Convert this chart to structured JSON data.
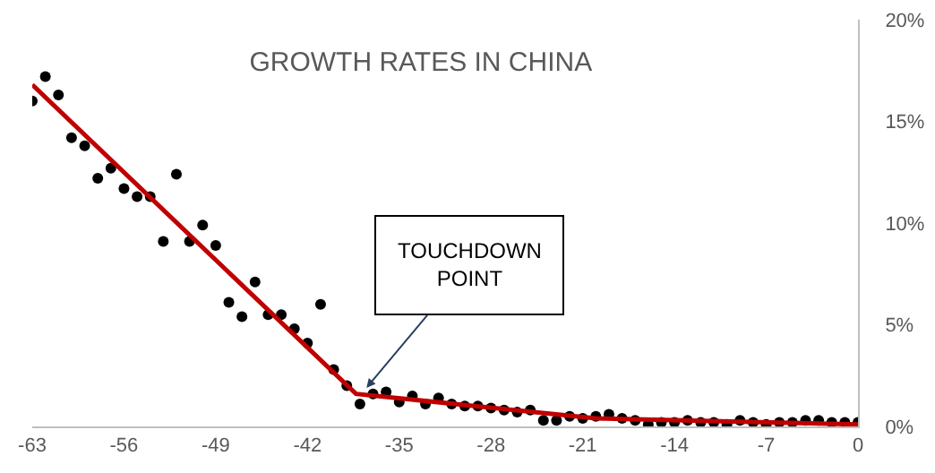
{
  "chart_data": {
    "type": "scatter",
    "title": "GROWTH RATES IN CHINA",
    "x": [
      -63,
      -62,
      -61,
      -60,
      -59,
      -58,
      -57,
      -56,
      -55,
      -54,
      -53,
      -52,
      -51,
      -50,
      -49,
      -48,
      -47,
      -46,
      -45,
      -44,
      -43,
      -42,
      -41,
      -40,
      -39,
      -38,
      -37,
      -36,
      -35,
      -34,
      -33,
      -32,
      -31,
      -30,
      -29,
      -28,
      -27,
      -26,
      -25,
      -24,
      -23,
      -22,
      -21,
      -20,
      -19,
      -18,
      -17,
      -16,
      -15,
      -14,
      -13,
      -12,
      -11,
      -10,
      -9,
      -8,
      -7,
      -6,
      -5,
      -4,
      -3,
      -2,
      -1,
      0
    ],
    "series": [
      {
        "color": "#000000",
        "values": [
          16.0,
          17.2,
          16.3,
          14.2,
          13.8,
          12.2,
          12.7,
          11.7,
          11.3,
          11.3,
          9.1,
          12.4,
          9.1,
          9.9,
          8.9,
          6.1,
          5.4,
          7.1,
          5.5,
          5.5,
          4.8,
          4.1,
          6.0,
          2.8,
          2.0,
          1.1,
          1.6,
          1.7,
          1.2,
          1.5,
          1.1,
          1.4,
          1.1,
          1.0,
          1.0,
          0.9,
          0.8,
          0.7,
          0.8,
          0.3,
          0.3,
          0.5,
          0.4,
          0.5,
          0.6,
          0.4,
          0.3,
          0.1,
          0.2,
          0.2,
          0.3,
          0.2,
          0.2,
          0.1,
          0.3,
          0.2,
          0.1,
          0.2,
          0.2,
          0.3,
          0.3,
          0.2,
          0.2,
          0.2
        ]
      },
      {
        "type": "line",
        "color": "#c00000",
        "marker": "none",
        "x": [
          -63,
          -38.3,
          -20,
          0
        ],
        "values": [
          16.8,
          1.6,
          0.4,
          0.1
        ]
      }
    ],
    "xlim": [
      -63,
      0
    ],
    "xticks": [
      -63,
      -56,
      -49,
      -42,
      -35,
      -28,
      -21,
      -14,
      -7,
      0
    ],
    "ylim": [
      0,
      20
    ],
    "yticks": [
      {
        "value": 0,
        "label": "0%"
      },
      {
        "value": 5,
        "label": "5%"
      },
      {
        "value": 10,
        "label": "10%"
      },
      {
        "value": 15,
        "label": "15%"
      },
      {
        "value": 20,
        "label": "20%"
      }
    ],
    "annotations": [
      {
        "text": "TOUCHDOWN\nPOINT",
        "x": -37.5,
        "y": 1.9
      }
    ],
    "marker": "circle"
  }
}
